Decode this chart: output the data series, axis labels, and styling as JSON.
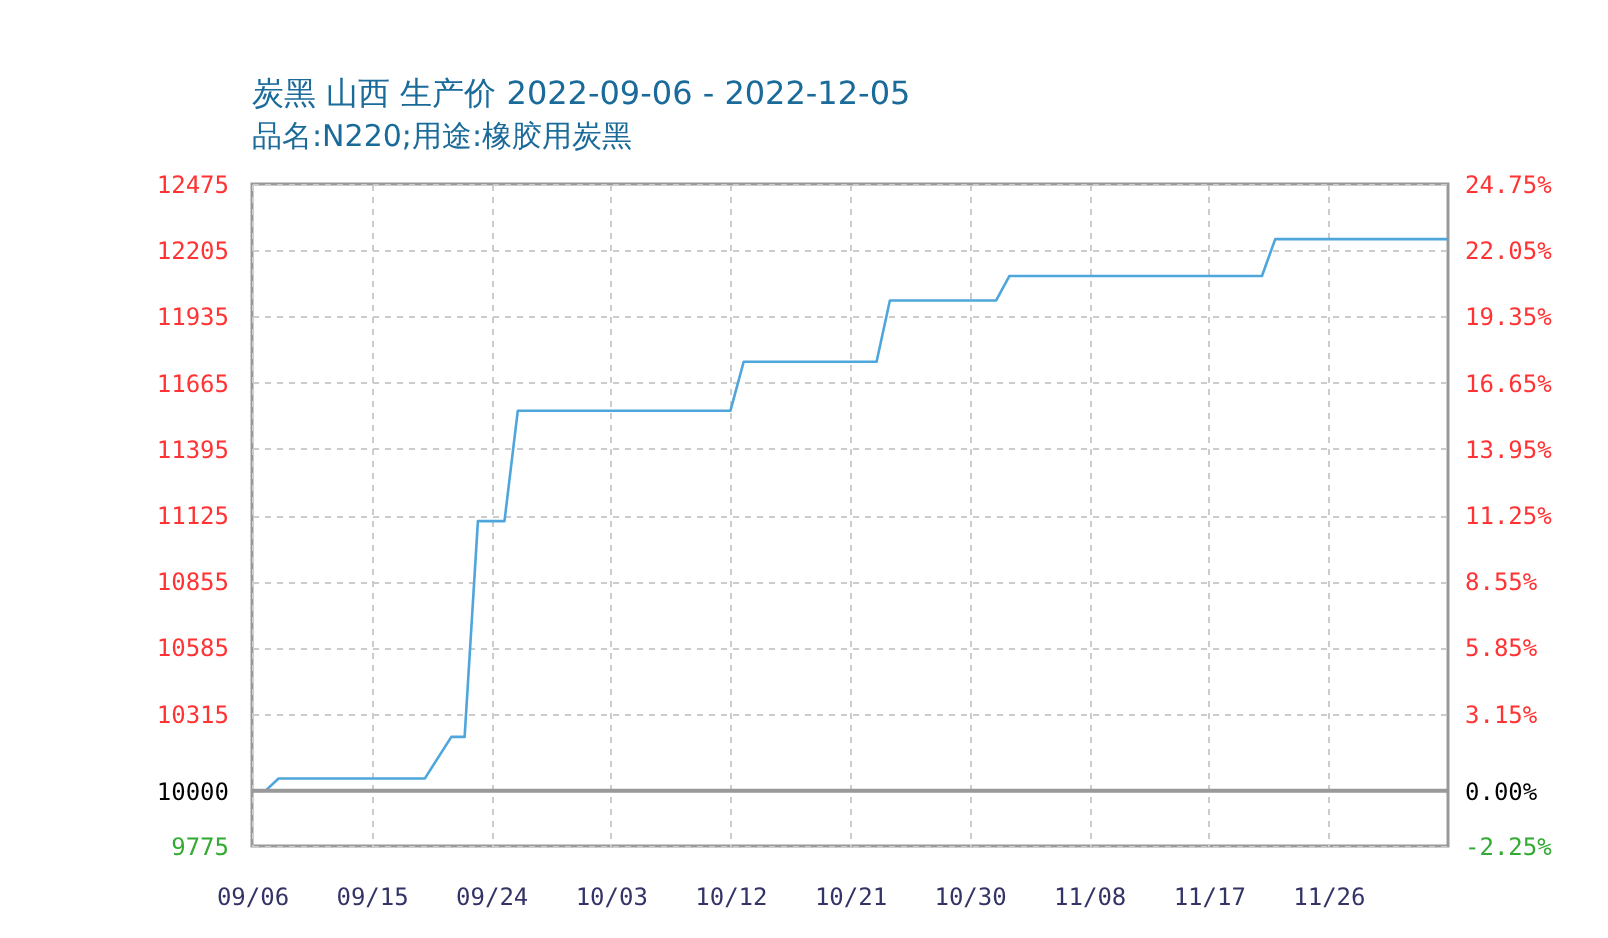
{
  "chart_data": {
    "type": "line",
    "title": "炭黑 山西 生产价 2022-09-06 - 2022-12-05",
    "subtitle": "品名:N220;用途:橡胶用炭黑",
    "x": [
      "2022-09-06",
      "2022-09-07",
      "2022-09-08",
      "2022-09-19",
      "2022-09-21",
      "2022-09-22",
      "2022-09-23",
      "2022-09-25",
      "2022-09-26",
      "2022-10-12",
      "2022-10-13",
      "2022-10-23",
      "2022-10-24",
      "2022-11-01",
      "2022-11-02",
      "2022-11-21",
      "2022-11-22",
      "2022-12-05"
    ],
    "series": [
      {
        "color": "#4ea6dc",
        "values": [
          10000,
          10000,
          10050,
          10050,
          10220,
          10220,
          11100,
          11100,
          11550,
          11550,
          11750,
          11750,
          12000,
          12000,
          12100,
          12100,
          12250,
          12250
        ]
      }
    ],
    "xlim": [
      "2022-09-06",
      "2022-12-05"
    ],
    "xticks": [
      {
        "value": "2022-09-06",
        "label": "09/06"
      },
      {
        "value": "2022-09-15",
        "label": "09/15"
      },
      {
        "value": "2022-09-24",
        "label": "09/24"
      },
      {
        "value": "2022-10-03",
        "label": "10/03"
      },
      {
        "value": "2022-10-12",
        "label": "10/12"
      },
      {
        "value": "2022-10-21",
        "label": "10/21"
      },
      {
        "value": "2022-10-30",
        "label": "10/30"
      },
      {
        "value": "2022-11-08",
        "label": "11/08"
      },
      {
        "value": "2022-11-17",
        "label": "11/17"
      },
      {
        "value": "2022-11-26",
        "label": "11/26"
      }
    ],
    "ylim": [
      9775,
      12475
    ],
    "yticks": [
      9775,
      10000,
      10315,
      10585,
      10855,
      11125,
      11395,
      11665,
      11935,
      12205,
      12475
    ],
    "y2lim": [
      -2.25,
      24.75
    ],
    "y2ticks": [
      {
        "value": -2.25,
        "label": "-2.25%"
      },
      {
        "value": 0,
        "label": "0.00%"
      },
      {
        "value": 3.15,
        "label": "3.15%"
      },
      {
        "value": 5.85,
        "label": "5.85%"
      },
      {
        "value": 8.55,
        "label": "8.55%"
      },
      {
        "value": 11.25,
        "label": "11.25%"
      },
      {
        "value": 13.95,
        "label": "13.95%"
      },
      {
        "value": 16.65,
        "label": "16.65%"
      },
      {
        "value": 19.35,
        "label": "19.35%"
      },
      {
        "value": 22.05,
        "label": "22.05%"
      },
      {
        "value": 24.75,
        "label": "24.75%"
      }
    ],
    "ref_lines": [
      {
        "axis": "y",
        "value": 10000,
        "color": "#999999"
      }
    ],
    "grid": true
  }
}
